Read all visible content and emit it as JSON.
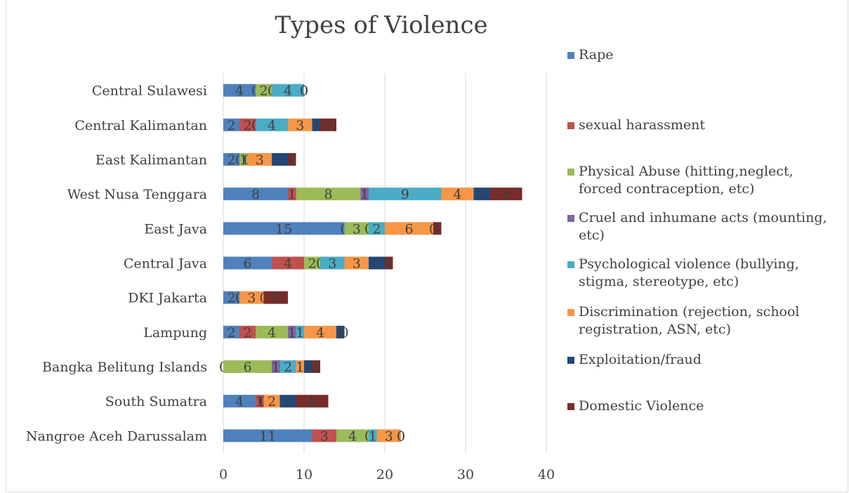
{
  "chart_data": {
    "type": "bar",
    "orientation": "horizontal",
    "stacked": true,
    "title": "Types of Violence",
    "categories": [
      "Nangroe Aceh Darussalam",
      "South Sumatra",
      "Bangka Belitung Islands",
      "Lampung",
      "DKI Jakarta",
      "Central Java",
      "East Java",
      "West Nusa Tenggara",
      "East Kalimantan",
      "Central Kalimantan",
      "Central Sulawesi"
    ],
    "series": [
      {
        "name": "Rape",
        "color": "#4f81bd",
        "values": [
          11,
          4,
          0,
          2,
          2,
          6,
          15,
          8,
          2,
          2,
          4
        ]
      },
      {
        "name": "sexual harassment",
        "color": "#c0504d",
        "values": [
          3,
          1,
          0,
          2,
          0,
          4,
          0,
          1,
          0,
          2,
          0
        ]
      },
      {
        "name": "Physical Abuse (hitting,neglect, forced contraception, etc)",
        "color": "#9bbb59",
        "values": [
          4,
          0,
          6,
          4,
          0,
          2,
          3,
          8,
          1,
          0,
          2
        ]
      },
      {
        "name": "Cruel and inhumane acts (mounting, etc)",
        "color": "#8064a2",
        "values": [
          0,
          0,
          1,
          1,
          0,
          0,
          0,
          1,
          0,
          0,
          0
        ]
      },
      {
        "name": "Psychological violence (bullying, stigma, stereotype, etc)",
        "color": "#4bacc6",
        "values": [
          1,
          0,
          2,
          1,
          0,
          3,
          2,
          9,
          0,
          4,
          4
        ]
      },
      {
        "name": "Discrimination (rejection, school registration, ASN, etc)",
        "color": "#f79646",
        "values": [
          3,
          2,
          1,
          4,
          3,
          3,
          6,
          4,
          3,
          3,
          0
        ]
      },
      {
        "name": "Exploitation/fraud",
        "color": "#1f497d",
        "values": [
          0,
          2,
          1,
          1,
          0,
          2,
          0,
          2,
          2,
          1,
          0
        ]
      },
      {
        "name": "Domestic Violence",
        "color": "#772c2a",
        "values": [
          0,
          4,
          1,
          0,
          3,
          1,
          1,
          4,
          1,
          2,
          0
        ]
      }
    ],
    "xlim": [
      0,
      40
    ],
    "xticks": [
      0,
      10,
      20,
      30,
      40
    ],
    "grid": "vertical",
    "legend_position": "right"
  }
}
